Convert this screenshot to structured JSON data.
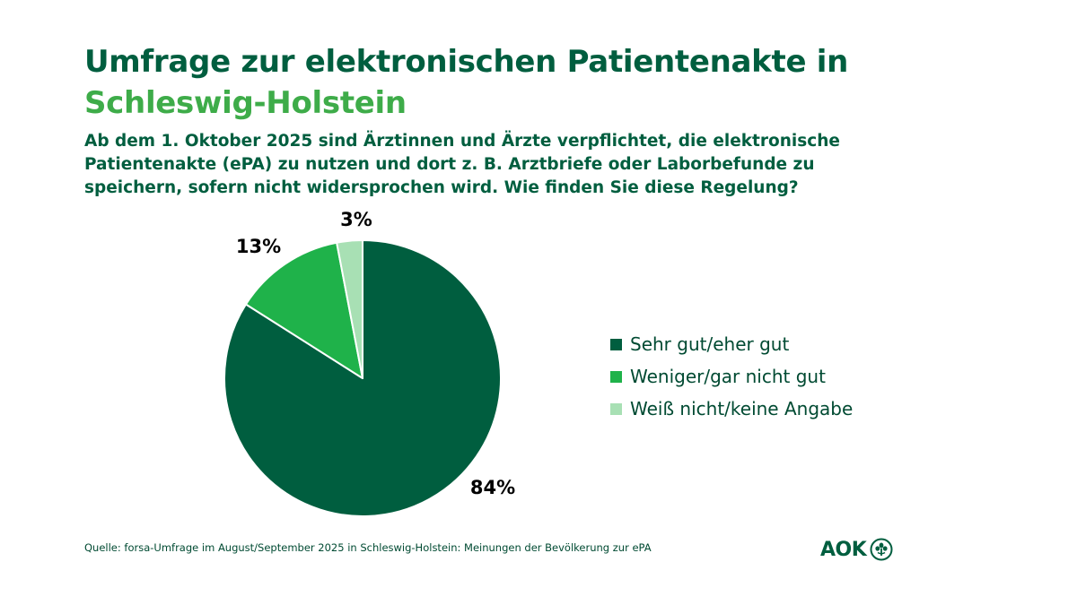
{
  "header": {
    "title_line1": "Umfrage zur elektronischen Patientenakte in",
    "title_line2": "Schleswig-Holstein",
    "question_line1": "Ab dem 1. Oktober 2025 sind Ärztinnen und Ärzte verpflichtet, die elektronische",
    "question_line2": "Patientenakte (ePA) zu nutzen und dort z. B. Arztbriefe oder Laborbefunde zu",
    "question_line3": "speichern, sofern nicht widersprochen wird. Wie finden Sie diese Regelung?"
  },
  "chart_data": {
    "type": "pie",
    "slices": [
      {
        "label": "Sehr gut/eher gut",
        "value": 84,
        "display": "84%",
        "color": "#005e3f"
      },
      {
        "label": "Weniger/gar nicht gut",
        "value": 13,
        "display": "13%",
        "color": "#1fb24a"
      },
      {
        "label": "Weiß nicht/keine Angabe",
        "value": 3,
        "display": "3%",
        "color": "#a8e0b4"
      }
    ],
    "legend_position": "right"
  },
  "footer": {
    "source": "Quelle: forsa-Umfrage im August/September 2025 in Schleswig-Holstein: Meinungen der Bevölkerung zur ePA",
    "logo_text": "AOK"
  },
  "colors": {
    "title_dark": "#005e3f",
    "title_accent": "#3eac49"
  }
}
